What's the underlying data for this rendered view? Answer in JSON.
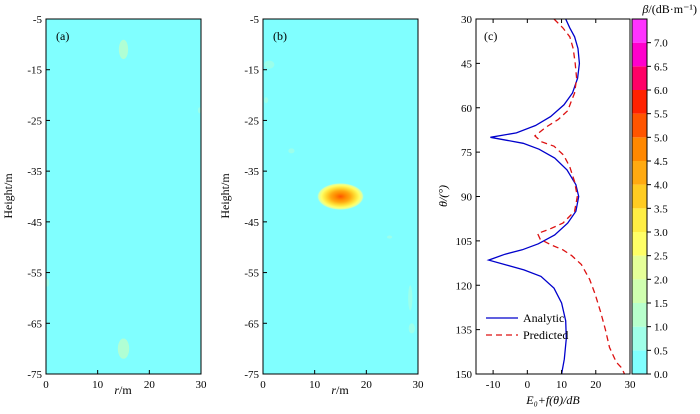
{
  "panels": {
    "a": {
      "tag": "(a)",
      "type": "heatmap",
      "xlabel_italic": "r",
      "xlabel_rest": "/m",
      "ylabel": "Height/m",
      "xlim": [
        0,
        30
      ],
      "ylim": [
        -75,
        -5
      ],
      "xticks": [
        "0",
        "10",
        "20",
        "30"
      ],
      "yticks": [
        "-5",
        "-15",
        "-25",
        "-35",
        "-45",
        "-55",
        "-65",
        "-75"
      ],
      "background_value": 0.4,
      "blobs": [
        {
          "x": 15,
          "y": -11,
          "value": 1.0,
          "rx": 0.9,
          "ry": 1.9
        },
        {
          "x": 15,
          "y": -70,
          "value": 1.1,
          "rx": 1.1,
          "ry": 2.0
        },
        {
          "x": 0.3,
          "y": -57,
          "value": 0.8,
          "rx": 0.3,
          "ry": 0.8
        },
        {
          "x": 29.7,
          "y": -23,
          "value": 0.8,
          "rx": 0.3,
          "ry": 0.6
        }
      ]
    },
    "b": {
      "tag": "(b)",
      "type": "heatmap",
      "xlabel_italic": "r",
      "xlabel_rest": "/m",
      "ylabel": "Height/m",
      "xlim": [
        0,
        30
      ],
      "ylim": [
        -75,
        -5
      ],
      "xticks": [
        "0",
        "10",
        "20",
        "30"
      ],
      "yticks": [
        "-5",
        "-15",
        "-25",
        "-35",
        "-45",
        "-55",
        "-65",
        "-75"
      ],
      "background_value": 0.4,
      "source": {
        "x": 15,
        "y": -40,
        "peak_value": 5.5
      },
      "blobs": [
        {
          "x": 1.2,
          "y": -14,
          "value": 0.9,
          "rx": 1.0,
          "ry": 0.8
        },
        {
          "x": 0.6,
          "y": -21,
          "value": 0.8,
          "rx": 0.4,
          "ry": 0.6
        },
        {
          "x": 5.5,
          "y": -31,
          "value": 0.8,
          "rx": 0.6,
          "ry": 0.5
        },
        {
          "x": 28.5,
          "y": -60,
          "value": 0.8,
          "rx": 0.4,
          "ry": 2.5
        },
        {
          "x": 28.8,
          "y": -66,
          "value": 0.9,
          "rx": 0.6,
          "ry": 1.0
        },
        {
          "x": 24.5,
          "y": -48,
          "value": 0.7,
          "rx": 0.5,
          "ry": 0.3
        }
      ]
    },
    "c": {
      "tag": "(c)",
      "type": "line",
      "xlabel": "E₀+f(θ)/dB",
      "ylabel": "θ/(°)",
      "xlim": [
        -15,
        30
      ],
      "ylim": [
        30,
        150
      ],
      "xticks": [
        -10,
        0,
        10,
        20,
        30
      ],
      "yticks": [
        30,
        45,
        60,
        75,
        90,
        105,
        120,
        135,
        150
      ],
      "series": [
        {
          "name": "Analytic",
          "color": "#0000cc",
          "dash": "solid",
          "points": [
            [
              11.2,
              30
            ],
            [
              12.4,
              33
            ],
            [
              13.8,
              36
            ],
            [
              14.8,
              40
            ],
            [
              15.2,
              45
            ],
            [
              14.7,
              50
            ],
            [
              13.2,
              55
            ],
            [
              10.7,
              59
            ],
            [
              6.8,
              63
            ],
            [
              2.4,
              66
            ],
            [
              -3.2,
              68.5
            ],
            [
              -10.8,
              70
            ],
            [
              -6,
              71
            ],
            [
              -1.2,
              72
            ],
            [
              3.4,
              74
            ],
            [
              8.0,
              77
            ],
            [
              11.6,
              81
            ],
            [
              14.2,
              86
            ],
            [
              15.0,
              90
            ],
            [
              14.2,
              95
            ],
            [
              11.8,
              99
            ],
            [
              8.0,
              103
            ],
            [
              3.2,
              106
            ],
            [
              -1.5,
              108
            ],
            [
              -6.5,
              109.5
            ],
            [
              -11.3,
              111.5
            ],
            [
              -6,
              113.2
            ],
            [
              -1,
              114.8
            ],
            [
              4.0,
              117
            ],
            [
              7.8,
              121
            ],
            [
              10.0,
              126
            ],
            [
              11.2,
              132
            ],
            [
              11.4,
              138
            ],
            [
              10.8,
              145
            ],
            [
              10.0,
              150
            ]
          ]
        },
        {
          "name": "Predicted",
          "color": "#dd1111",
          "dash": "6,4",
          "points": [
            [
              7.8,
              30
            ],
            [
              10.4,
              33
            ],
            [
              12.4,
              36
            ],
            [
              13.4,
              40
            ],
            [
              14.0,
              45
            ],
            [
              14.4,
              50
            ],
            [
              13.8,
              55
            ],
            [
              12.8,
              58
            ],
            [
              11.8,
              61
            ],
            [
              9.0,
              64
            ],
            [
              5.5,
              66.5
            ],
            [
              2.2,
              69.5
            ],
            [
              4.2,
              71.5
            ],
            [
              7.8,
              73
            ],
            [
              10.6,
              76
            ],
            [
              12.4,
              80
            ],
            [
              13.8,
              85
            ],
            [
              14.6,
              90
            ],
            [
              13.8,
              95
            ],
            [
              10.4,
              99
            ],
            [
              6.6,
              101
            ],
            [
              3.0,
              102.5
            ],
            [
              3.8,
              104.5
            ],
            [
              7.2,
              106.5
            ],
            [
              10.4,
              108
            ],
            [
              13.0,
              110
            ],
            [
              15.8,
              113
            ],
            [
              18.2,
              118
            ],
            [
              19.8,
              123
            ],
            [
              21.4,
              129
            ],
            [
              22.8,
              135
            ],
            [
              24.0,
              141
            ],
            [
              26.0,
              146
            ],
            [
              27.6,
              148
            ],
            [
              28.4,
              150
            ]
          ]
        }
      ]
    }
  },
  "colorbar": {
    "title_italic": "β",
    "title_rest": "/(dB·m⁻¹)",
    "min": 0,
    "max": 7.5,
    "ticks": [
      "0.0",
      "0.5",
      "1.0",
      "1.5",
      "2.0",
      "2.5",
      "3.0",
      "3.5",
      "4.0",
      "4.5",
      "5.0",
      "5.5",
      "6.0",
      "6.5",
      "7.0"
    ],
    "colors": [
      "#80ffff",
      "#a0ffe8",
      "#b8ffcc",
      "#d0ffb0",
      "#e6ff99",
      "#ffff66",
      "#ffee44",
      "#ffcc22",
      "#ffaa11",
      "#ff8800",
      "#ff5500",
      "#ff2200",
      "#ff0066",
      "#ff00cc",
      "#ff33ff"
    ]
  },
  "theme": {
    "background_color": "#80ffff"
  }
}
